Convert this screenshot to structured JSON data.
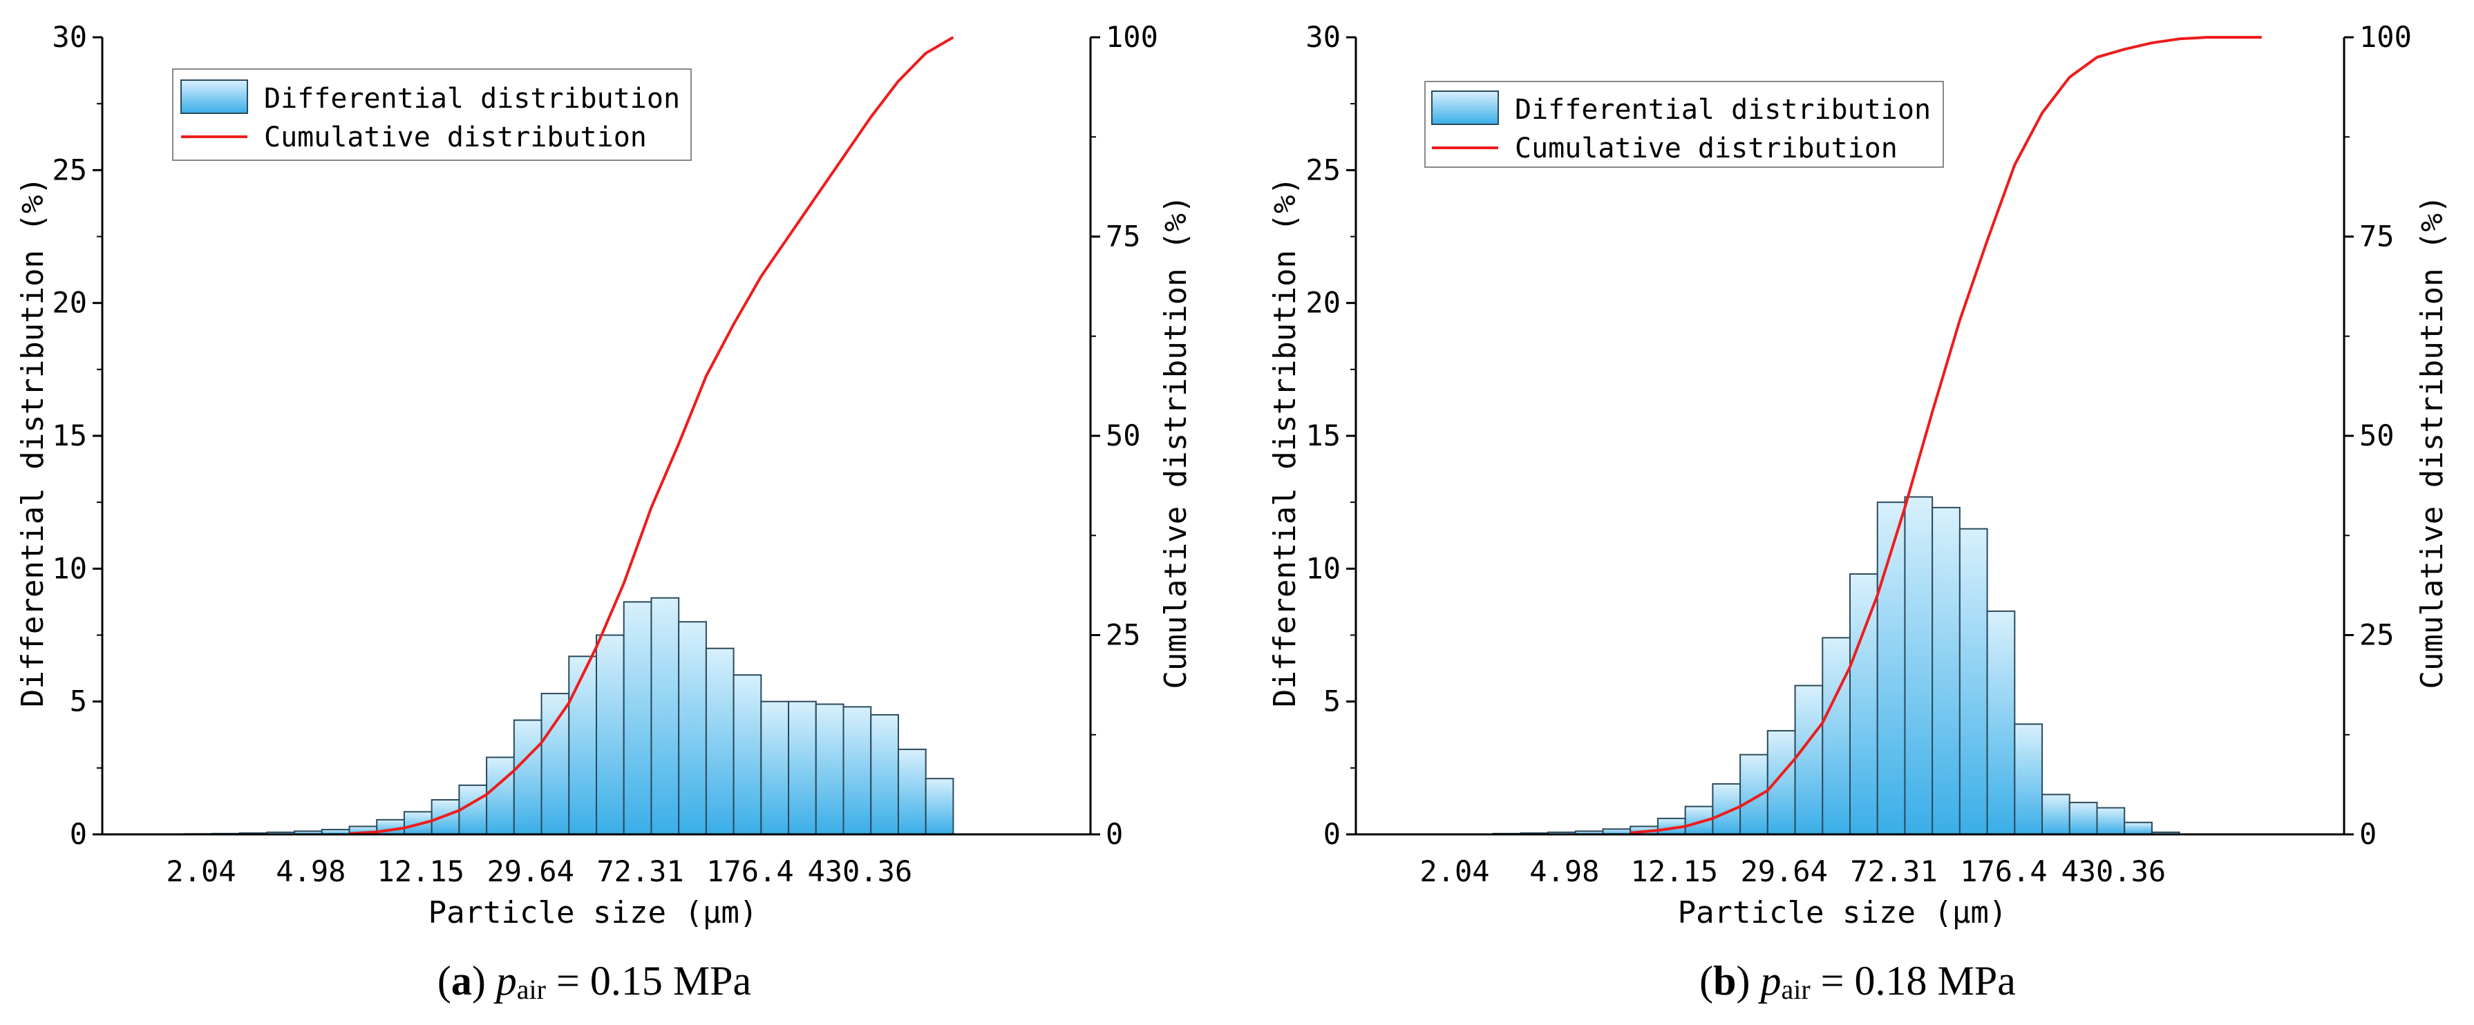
{
  "colors": {
    "bar_fill_top": "#d8f0fc",
    "bar_fill_bottom": "#3aaee8",
    "bar_stroke": "#2a4a5c",
    "cumulative_line": "#ee1c1c",
    "axis": "#000000"
  },
  "chart_data": [
    {
      "id": "a",
      "type": "bar",
      "caption": {
        "letter": "a",
        "symbol": "p",
        "subscript": "air",
        "value": "= 0.15 MPa"
      },
      "xlabel": "Particle size (μm)",
      "ylabel": "Differential distribution (%)",
      "y2label": "Cumulative distribution (%)",
      "ylim": [
        0,
        30
      ],
      "y2lim": [
        0,
        100
      ],
      "yticks": [
        "0",
        "5",
        "10",
        "15",
        "20",
        "25",
        "30"
      ],
      "y2ticks": [
        "0",
        "25",
        "50",
        "75",
        "100"
      ],
      "xtick_labels": [
        "2.04",
        "4.98",
        "12.15",
        "29.64",
        "72.31",
        "176.4",
        "430.36"
      ],
      "legend": {
        "position": "top-left",
        "entries": [
          "Differential distribution",
          "Cumulative distribution"
        ]
      },
      "series": [
        {
          "name": "Differential distribution",
          "bin_start": 3,
          "values": [
            0.02,
            0.03,
            0.05,
            0.08,
            0.12,
            0.18,
            0.3,
            0.55,
            0.85,
            1.3,
            1.85,
            2.9,
            4.3,
            5.3,
            6.7,
            7.5,
            8.75,
            8.9,
            8.0,
            7.0,
            6.0,
            5.0,
            5.0,
            4.9,
            4.8,
            4.5,
            3.2,
            2.1
          ]
        },
        {
          "name": "Cumulative distribution",
          "x": [
            9,
            10,
            11,
            12,
            13,
            14,
            15,
            16,
            17,
            18,
            19,
            20,
            21,
            22,
            23,
            24,
            25,
            26,
            27,
            28,
            29,
            30,
            31
          ],
          "values": [
            0.1,
            0.3,
            0.8,
            1.7,
            3.0,
            5.0,
            8.0,
            11.5,
            16.5,
            23.5,
            31.5,
            41.0,
            49.0,
            57.5,
            64.0,
            70.0,
            75.0,
            80.0,
            85.0,
            90.0,
            94.5,
            98.0,
            100.0
          ]
        }
      ]
    },
    {
      "id": "b",
      "type": "bar",
      "caption": {
        "letter": "b",
        "symbol": "p",
        "subscript": "air",
        "value": "= 0.18 MPa"
      },
      "xlabel": "Particle size (μm)",
      "ylabel": "Differential distribution (%)",
      "y2label": "Cumulative distribution (%)",
      "ylim": [
        0,
        30
      ],
      "y2lim": [
        0,
        100
      ],
      "yticks": [
        "0",
        "5",
        "10",
        "15",
        "20",
        "25",
        "30"
      ],
      "y2ticks": [
        "0",
        "25",
        "50",
        "75",
        "100"
      ],
      "xtick_labels": [
        "2.04",
        "4.98",
        "12.15",
        "29.64",
        "72.31",
        "176.4",
        "430.36"
      ],
      "legend": {
        "position": "top-left",
        "entries": [
          "Differential distribution",
          "Cumulative distribution"
        ]
      },
      "series": [
        {
          "name": "Differential distribution",
          "bin_start": 5,
          "values": [
            0.03,
            0.05,
            0.08,
            0.12,
            0.2,
            0.3,
            0.6,
            1.05,
            1.9,
            3.0,
            3.9,
            5.6,
            7.4,
            9.8,
            12.5,
            12.7,
            12.3,
            11.5,
            8.4,
            4.15,
            1.5,
            1.2,
            1.0,
            0.45,
            0.08
          ]
        },
        {
          "name": "Cumulative distribution",
          "x": [
            10,
            11,
            12,
            13,
            14,
            15,
            16,
            17,
            18,
            19,
            20,
            21,
            22,
            23,
            24,
            25,
            26,
            27,
            28,
            29,
            30,
            31,
            32,
            33
          ],
          "values": [
            0.2,
            0.5,
            1.0,
            2.0,
            3.5,
            5.5,
            9.5,
            14.0,
            21.0,
            30.0,
            41.0,
            53.0,
            64.5,
            74.5,
            84.0,
            90.5,
            95.0,
            97.5,
            98.5,
            99.3,
            99.8,
            100.0,
            100.0,
            100.0
          ]
        }
      ]
    }
  ]
}
